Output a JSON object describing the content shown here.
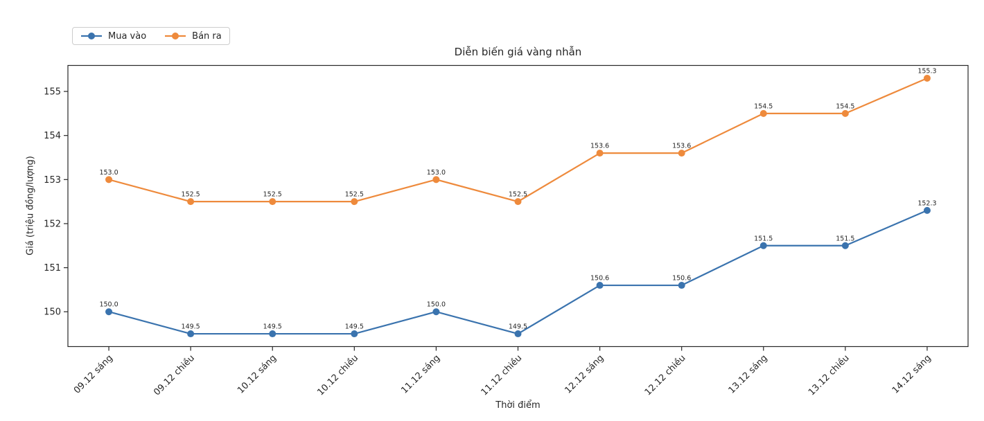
{
  "chart_data": {
    "type": "line",
    "title": "Diễn biến giá vàng nhẫn",
    "xlabel": "Thời điểm",
    "ylabel": "Giá (triệu đồng/lượng)",
    "categories": [
      "09.12 sáng",
      "09.12 chiều",
      "10.12 sáng",
      "10.12 chiều",
      "11.12 sáng",
      "11.12 chiều",
      "12.12 sáng",
      "12.12 chiều",
      "13.12 sáng",
      "13.12 chiều",
      "14.12 sáng"
    ],
    "series": [
      {
        "name": "Mua vào",
        "color": "#3a73ae",
        "values": [
          150.0,
          149.5,
          149.5,
          149.5,
          150.0,
          149.5,
          150.6,
          150.6,
          151.5,
          151.5,
          152.3
        ]
      },
      {
        "name": "Bán ra",
        "color": "#ee8a3c",
        "values": [
          153.0,
          152.5,
          152.5,
          152.5,
          153.0,
          152.5,
          153.6,
          153.6,
          154.5,
          154.5,
          155.3
        ]
      }
    ],
    "y_ticks": [
      150,
      151,
      152,
      153,
      154,
      155
    ],
    "ylim": [
      149.21,
      155.59
    ],
    "legend_position": "upper-left-outside",
    "grid": false,
    "data_labels": true,
    "axis_color": "#262626",
    "background": "#ffffff"
  }
}
